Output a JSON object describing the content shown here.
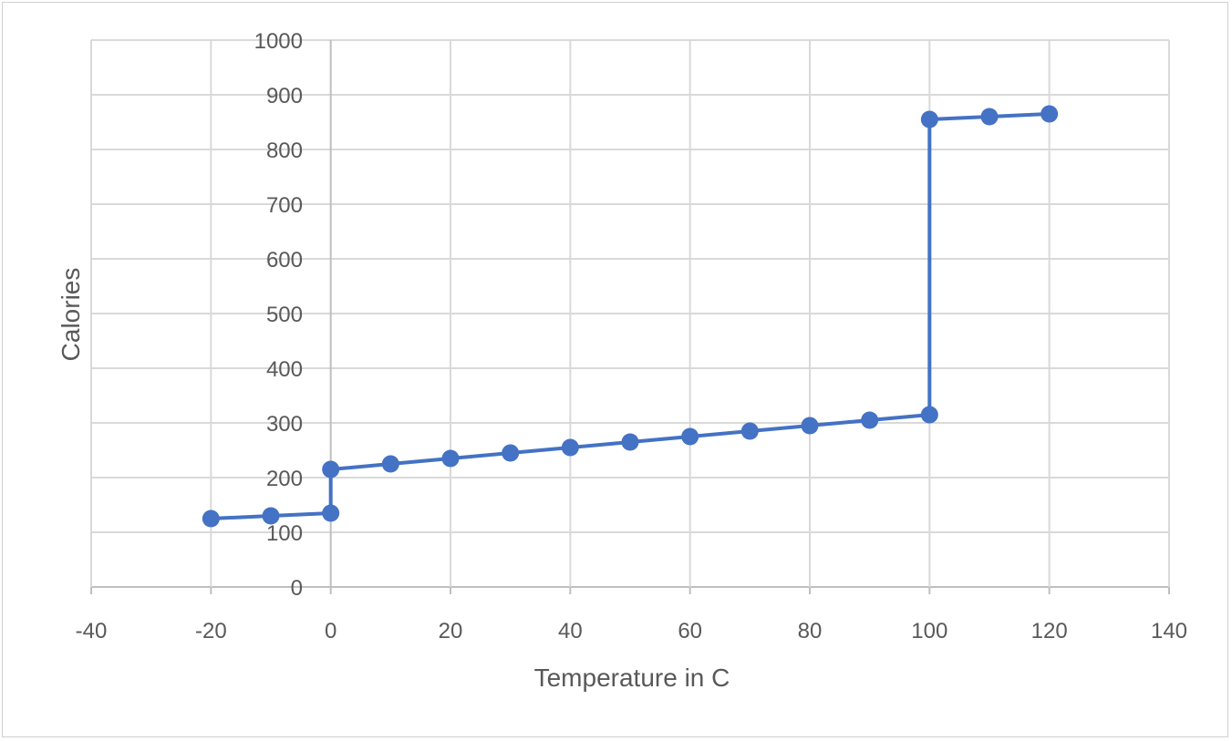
{
  "chart_data": {
    "type": "line",
    "title": "",
    "xlabel": "Temperature in C",
    "ylabel": "Calories",
    "xlim": [
      -40,
      140
    ],
    "ylim": [
      0,
      1000
    ],
    "x_ticks": [
      -40,
      -20,
      0,
      20,
      40,
      60,
      80,
      100,
      120,
      140
    ],
    "y_ticks": [
      0,
      100,
      200,
      300,
      400,
      500,
      600,
      700,
      800,
      900,
      1000
    ],
    "grid": true,
    "series": [
      {
        "name": "Calories",
        "color": "#4472C4",
        "x": [
          -20,
          -10,
          0,
          0,
          10,
          20,
          30,
          40,
          50,
          60,
          70,
          80,
          90,
          100,
          100,
          110,
          120
        ],
        "y": [
          125,
          130,
          135,
          215,
          225,
          235,
          245,
          255,
          265,
          275,
          285,
          295,
          305,
          315,
          855,
          860,
          865
        ]
      }
    ],
    "colors": {
      "grid": "#d9d9d9",
      "axis": "#bfbfbf",
      "text": "#595959"
    }
  }
}
